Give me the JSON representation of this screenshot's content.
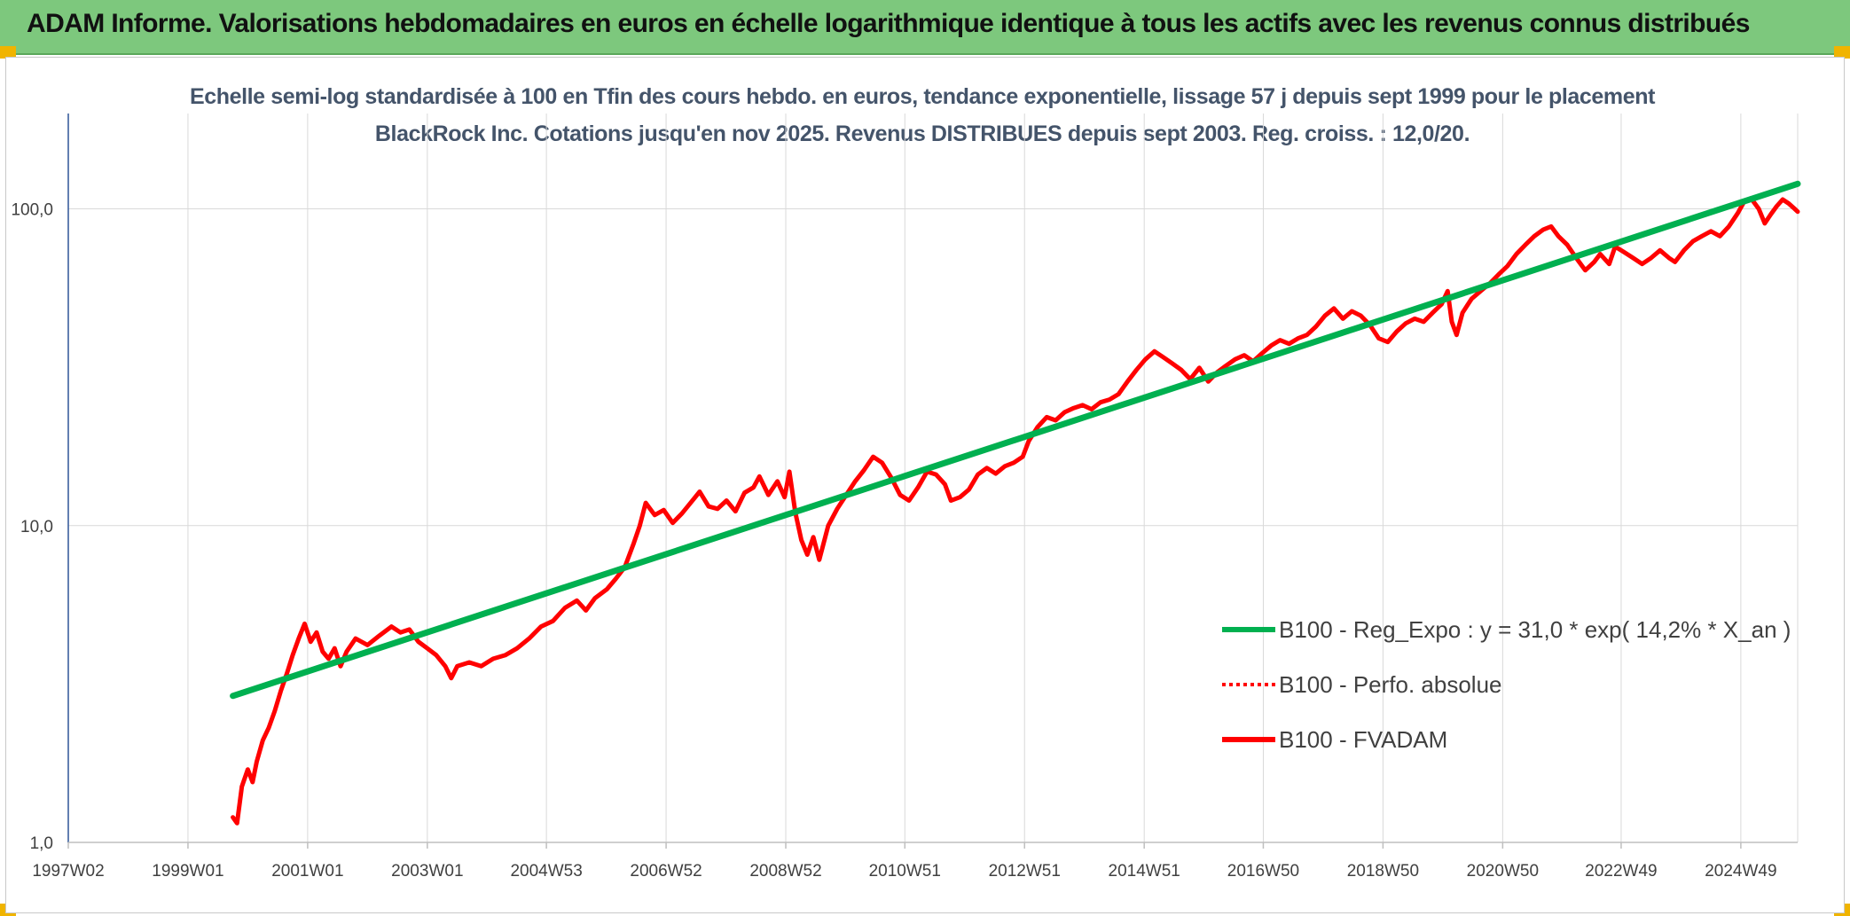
{
  "banner": {
    "title": "ADAM Informe. Valorisations hebdomadaires en euros en échelle logarithmique identique à tous les actifs avec les revenus connus distribués"
  },
  "colors": {
    "banner_bg": "#7dc87d",
    "regression": "#00b050",
    "fvadam": "#ff0000",
    "perfo": "#ff0000",
    "grid": "#d9d9d9",
    "axis": "#2f5597"
  },
  "chart_data": {
    "type": "line",
    "title": "Echelle semi-log standardisée à 100 en Tfin des cours hebdo. en euros, tendance exponentielle, lissage 57 j depuis sept 1999 pour le placement BlackRock Inc. Cotations jusqu'en nov 2025. Revenus DISTRIBUES depuis sept 2003. Reg. croiss. : 12,0/20.",
    "y_scale": "log",
    "ylim": [
      1,
      200
    ],
    "y_ticks": [
      {
        "value": 1,
        "label": "1,0"
      },
      {
        "value": 10,
        "label": "10,0"
      },
      {
        "value": 100,
        "label": "100,0"
      }
    ],
    "x_range": [
      1997.0,
      2025.9
    ],
    "x_ticks": [
      {
        "x": 1997.0,
        "label": "1997W02"
      },
      {
        "x": 1999.0,
        "label": "1999W01"
      },
      {
        "x": 2001.0,
        "label": "2001W01"
      },
      {
        "x": 2003.0,
        "label": "2003W01"
      },
      {
        "x": 2004.99,
        "label": "2004W53"
      },
      {
        "x": 2006.99,
        "label": "2006W52"
      },
      {
        "x": 2008.99,
        "label": "2008W52"
      },
      {
        "x": 2010.98,
        "label": "2010W51"
      },
      {
        "x": 2012.98,
        "label": "2012W51"
      },
      {
        "x": 2014.98,
        "label": "2014W51"
      },
      {
        "x": 2016.97,
        "label": "2016W50"
      },
      {
        "x": 2018.97,
        "label": "2018W50"
      },
      {
        "x": 2020.97,
        "label": "2020W50"
      },
      {
        "x": 2022.95,
        "label": "2022W49"
      },
      {
        "x": 2024.95,
        "label": "2024W49"
      }
    ],
    "legend_position": "bottom-right",
    "grid": {
      "vertical": true,
      "horizontal": true
    },
    "series": [
      {
        "name": "B100 - Reg_Expo : y = 31,0 * exp( 14,2% *  X_an )",
        "color": "#00b050",
        "style": "solid",
        "points": [
          [
            1999.75,
            2.9
          ],
          [
            2025.9,
            120.0
          ]
        ]
      },
      {
        "name": "B100 - Perfo. absolue",
        "color": "#ff0000",
        "style": "dotted",
        "points": []
      },
      {
        "name": "B100 - FVADAM",
        "color": "#ff0000",
        "style": "solid",
        "points": [
          [
            1999.75,
            1.2
          ],
          [
            1999.82,
            1.15
          ],
          [
            1999.9,
            1.5
          ],
          [
            2000.0,
            1.7
          ],
          [
            2000.08,
            1.55
          ],
          [
            2000.15,
            1.8
          ],
          [
            2000.25,
            2.1
          ],
          [
            2000.35,
            2.3
          ],
          [
            2000.45,
            2.6
          ],
          [
            2000.55,
            3.0
          ],
          [
            2000.65,
            3.4
          ],
          [
            2000.75,
            3.9
          ],
          [
            2000.85,
            4.4
          ],
          [
            2000.95,
            4.9
          ],
          [
            2001.05,
            4.3
          ],
          [
            2001.15,
            4.6
          ],
          [
            2001.25,
            4.0
          ],
          [
            2001.35,
            3.8
          ],
          [
            2001.45,
            4.1
          ],
          [
            2001.55,
            3.6
          ],
          [
            2001.65,
            4.0
          ],
          [
            2001.8,
            4.4
          ],
          [
            2002.0,
            4.2
          ],
          [
            2002.2,
            4.5
          ],
          [
            2002.4,
            4.8
          ],
          [
            2002.55,
            4.6
          ],
          [
            2002.7,
            4.7
          ],
          [
            2002.85,
            4.3
          ],
          [
            2003.0,
            4.1
          ],
          [
            2003.15,
            3.9
          ],
          [
            2003.3,
            3.6
          ],
          [
            2003.4,
            3.3
          ],
          [
            2003.5,
            3.6
          ],
          [
            2003.7,
            3.7
          ],
          [
            2003.9,
            3.6
          ],
          [
            2004.1,
            3.8
          ],
          [
            2004.3,
            3.9
          ],
          [
            2004.5,
            4.1
          ],
          [
            2004.7,
            4.4
          ],
          [
            2004.9,
            4.8
          ],
          [
            2005.1,
            5.0
          ],
          [
            2005.3,
            5.5
          ],
          [
            2005.5,
            5.8
          ],
          [
            2005.65,
            5.4
          ],
          [
            2005.8,
            5.9
          ],
          [
            2006.0,
            6.3
          ],
          [
            2006.15,
            6.8
          ],
          [
            2006.3,
            7.4
          ],
          [
            2006.45,
            8.8
          ],
          [
            2006.55,
            10.0
          ],
          [
            2006.65,
            11.8
          ],
          [
            2006.8,
            10.8
          ],
          [
            2006.95,
            11.2
          ],
          [
            2007.1,
            10.2
          ],
          [
            2007.25,
            10.9
          ],
          [
            2007.4,
            11.8
          ],
          [
            2007.55,
            12.8
          ],
          [
            2007.7,
            11.5
          ],
          [
            2007.85,
            11.3
          ],
          [
            2008.0,
            12.0
          ],
          [
            2008.15,
            11.1
          ],
          [
            2008.3,
            12.7
          ],
          [
            2008.45,
            13.2
          ],
          [
            2008.55,
            14.3
          ],
          [
            2008.7,
            12.5
          ],
          [
            2008.85,
            13.8
          ],
          [
            2008.97,
            12.3
          ],
          [
            2009.05,
            14.8
          ],
          [
            2009.15,
            11.0
          ],
          [
            2009.25,
            9.0
          ],
          [
            2009.35,
            8.1
          ],
          [
            2009.45,
            9.2
          ],
          [
            2009.55,
            7.8
          ],
          [
            2009.7,
            10.0
          ],
          [
            2009.85,
            11.3
          ],
          [
            2010.0,
            12.5
          ],
          [
            2010.15,
            13.8
          ],
          [
            2010.3,
            15.0
          ],
          [
            2010.45,
            16.5
          ],
          [
            2010.6,
            15.8
          ],
          [
            2010.75,
            14.2
          ],
          [
            2010.9,
            12.5
          ],
          [
            2011.05,
            12.0
          ],
          [
            2011.2,
            13.2
          ],
          [
            2011.35,
            14.8
          ],
          [
            2011.5,
            14.5
          ],
          [
            2011.65,
            13.5
          ],
          [
            2011.75,
            12.0
          ],
          [
            2011.9,
            12.3
          ],
          [
            2012.05,
            13.0
          ],
          [
            2012.2,
            14.5
          ],
          [
            2012.35,
            15.2
          ],
          [
            2012.5,
            14.6
          ],
          [
            2012.65,
            15.4
          ],
          [
            2012.8,
            15.8
          ],
          [
            2012.95,
            16.5
          ],
          [
            2013.05,
            18.5
          ],
          [
            2013.2,
            20.5
          ],
          [
            2013.35,
            22.0
          ],
          [
            2013.5,
            21.5
          ],
          [
            2013.65,
            22.8
          ],
          [
            2013.8,
            23.5
          ],
          [
            2013.95,
            24.0
          ],
          [
            2014.1,
            23.3
          ],
          [
            2014.25,
            24.5
          ],
          [
            2014.4,
            25.0
          ],
          [
            2014.55,
            26.0
          ],
          [
            2014.7,
            28.5
          ],
          [
            2014.85,
            31.0
          ],
          [
            2015.0,
            33.5
          ],
          [
            2015.15,
            35.5
          ],
          [
            2015.3,
            34.0
          ],
          [
            2015.45,
            32.5
          ],
          [
            2015.6,
            31.0
          ],
          [
            2015.75,
            29.0
          ],
          [
            2015.9,
            31.5
          ],
          [
            2016.05,
            28.5
          ],
          [
            2016.2,
            30.5
          ],
          [
            2016.35,
            32.0
          ],
          [
            2016.5,
            33.5
          ],
          [
            2016.65,
            34.5
          ],
          [
            2016.8,
            33.0
          ],
          [
            2016.95,
            35.0
          ],
          [
            2017.1,
            37.0
          ],
          [
            2017.25,
            38.5
          ],
          [
            2017.4,
            37.5
          ],
          [
            2017.55,
            39.0
          ],
          [
            2017.7,
            40.0
          ],
          [
            2017.85,
            42.5
          ],
          [
            2018.0,
            46.0
          ],
          [
            2018.15,
            48.5
          ],
          [
            2018.3,
            45.0
          ],
          [
            2018.45,
            47.5
          ],
          [
            2018.6,
            46.0
          ],
          [
            2018.75,
            43.0
          ],
          [
            2018.9,
            39.0
          ],
          [
            2019.05,
            38.0
          ],
          [
            2019.2,
            41.0
          ],
          [
            2019.35,
            43.5
          ],
          [
            2019.5,
            45.0
          ],
          [
            2019.65,
            44.0
          ],
          [
            2019.8,
            47.0
          ],
          [
            2019.95,
            50.0
          ],
          [
            2020.05,
            55.0
          ],
          [
            2020.12,
            44.0
          ],
          [
            2020.2,
            40.0
          ],
          [
            2020.3,
            47.0
          ],
          [
            2020.45,
            52.0
          ],
          [
            2020.6,
            55.0
          ],
          [
            2020.75,
            58.0
          ],
          [
            2020.9,
            62.0
          ],
          [
            2021.05,
            66.0
          ],
          [
            2021.2,
            72.0
          ],
          [
            2021.35,
            77.0
          ],
          [
            2021.5,
            82.0
          ],
          [
            2021.65,
            86.0
          ],
          [
            2021.78,
            88.0
          ],
          [
            2021.9,
            82.0
          ],
          [
            2022.05,
            77.0
          ],
          [
            2022.2,
            70.0
          ],
          [
            2022.35,
            64.0
          ],
          [
            2022.5,
            68.0
          ],
          [
            2022.6,
            72.0
          ],
          [
            2022.75,
            67.0
          ],
          [
            2022.85,
            76.0
          ],
          [
            2023.0,
            73.0
          ],
          [
            2023.15,
            70.0
          ],
          [
            2023.3,
            67.0
          ],
          [
            2023.45,
            70.0
          ],
          [
            2023.6,
            74.0
          ],
          [
            2023.75,
            70.0
          ],
          [
            2023.85,
            68.0
          ],
          [
            2024.0,
            74.0
          ],
          [
            2024.15,
            79.0
          ],
          [
            2024.3,
            82.0
          ],
          [
            2024.45,
            85.0
          ],
          [
            2024.6,
            82.0
          ],
          [
            2024.75,
            88.0
          ],
          [
            2024.9,
            97.0
          ],
          [
            2025.0,
            105.0
          ],
          [
            2025.12,
            108.0
          ],
          [
            2025.25,
            100.0
          ],
          [
            2025.35,
            90.0
          ],
          [
            2025.45,
            96.0
          ],
          [
            2025.55,
            102.0
          ],
          [
            2025.65,
            107.0
          ],
          [
            2025.75,
            104.0
          ],
          [
            2025.85,
            100.0
          ],
          [
            2025.9,
            98.0
          ]
        ]
      }
    ]
  }
}
